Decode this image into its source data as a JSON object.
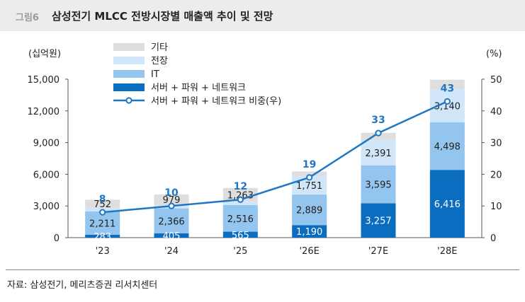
{
  "header": {
    "figure_label": "그림6",
    "title": "삼성전기 MLCC 전방시장별 매출액 추이 및 전망"
  },
  "source": "자료: 삼성전기, 메리츠증권 리서치센터",
  "chart_data": {
    "type": "bar",
    "stacked": true,
    "categories": [
      "'23",
      "'24",
      "'25",
      "'26E",
      "'27E",
      "'28E"
    ],
    "series": [
      {
        "name": "서버 + 파워 + 네트워크",
        "values": [
          283,
          405,
          565,
          1190,
          3257,
          6416
        ],
        "color": "#0b6dc0",
        "label_color": "#ffffff"
      },
      {
        "name": "IT",
        "values": [
          2211,
          2366,
          2516,
          2889,
          3595,
          4498
        ],
        "color": "#94c5ee",
        "label_color": "#222222"
      },
      {
        "name": "전장",
        "values": [
          343,
          344,
          353,
          1751,
          2391,
          3140
        ],
        "color": "#d1e6f8",
        "label_color": "#222222"
      },
      {
        "name": "기타",
        "values": [
          752,
          979,
          1263,
          437,
          686,
          900
        ],
        "color": "#dedede",
        "label_color": "#222222"
      }
    ],
    "data_labels": {
      "서버 + 파워 + 네트워크": [
        "283",
        "405",
        "565",
        "1,190",
        "3,257",
        "6,416"
      ],
      "IT": [
        "2,211",
        "2,366",
        "2,516",
        "2,889",
        "3,595",
        "4,498"
      ],
      "전장": [
        "",
        "",
        "",
        "1,751",
        "2,391",
        "3,140"
      ],
      "기타": [
        "752",
        "979",
        "1,263",
        "",
        "",
        ""
      ]
    },
    "line_series": {
      "name": "서버 + 파워 + 네트워크 비중(우)",
      "values": [
        8,
        10,
        12,
        19,
        33,
        43
      ],
      "labels": [
        "8",
        "10",
        "12",
        "19",
        "33",
        "43"
      ],
      "color": "#1f77c4",
      "axis": "right"
    },
    "y_left": {
      "unit": "(십억원)",
      "range": [
        0,
        15000
      ],
      "ticks": [
        "0",
        "3,000",
        "6,000",
        "9,000",
        "12,000",
        "15,000"
      ],
      "tick_values": [
        0,
        3000,
        6000,
        9000,
        12000,
        15000
      ]
    },
    "y_right": {
      "unit": "(%)",
      "range": [
        0,
        50
      ],
      "ticks": [
        "0",
        "10",
        "20",
        "30",
        "40",
        "50"
      ],
      "tick_values": [
        0,
        10,
        20,
        30,
        40,
        50
      ]
    },
    "legend": {
      "placement": "top-left",
      "items": [
        "기타",
        "전장",
        "IT",
        "서버 + 파워 + 네트워크",
        "서버 + 파워 + 네트워크 비중(우)"
      ]
    },
    "grid": false
  }
}
